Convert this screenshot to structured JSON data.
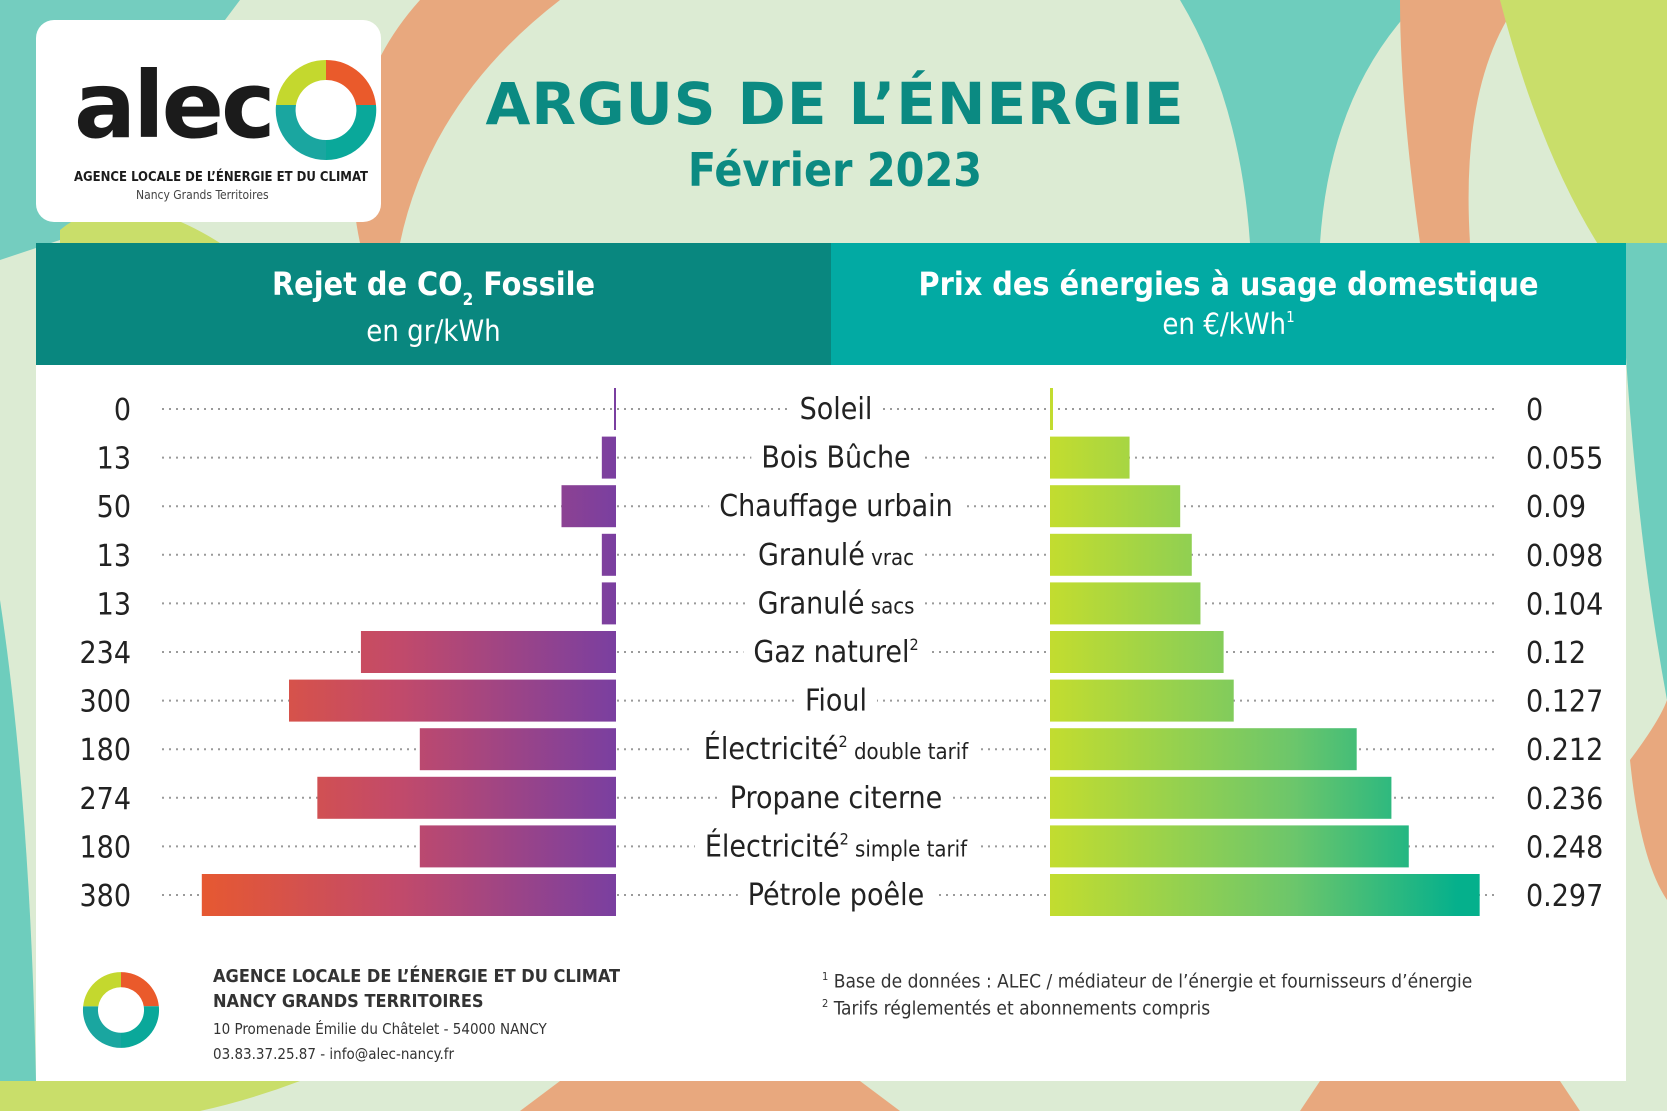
{
  "colors": {
    "title": "#0b8a82",
    "header_left": "#09877f",
    "header_right": "#02aaa3",
    "co2_bar_low": "#7a3fa0",
    "co2_bar_high": "#ea5a2b",
    "price_bar_low": "#c4dd2e",
    "price_bar_high": "#05b08c"
  },
  "logo": {
    "word": "alec",
    "line1": "AGENCE LOCALE DE L’ÉNERGIE ET DU CLIMAT",
    "line2": "Nancy Grands Territoires"
  },
  "header": {
    "title": "ARGUS DE L’ÉNERGIE",
    "subtitle": "Février 2023"
  },
  "left_panel": {
    "title_a": "Rejet de CO",
    "title_sub": "2",
    "title_b": " Fossile",
    "unit": "en gr/kWh"
  },
  "right_panel": {
    "title": "Prix des énergies à usage domestique",
    "unit": "en €/kWh",
    "unit_sup": "1"
  },
  "chart_data": {
    "type": "bar",
    "layout": "diverging-horizontal",
    "categories": [
      {
        "label": "Soleil",
        "small": "",
        "sup": ""
      },
      {
        "label": "Bois Bûche",
        "small": "",
        "sup": ""
      },
      {
        "label": "Chauffage urbain",
        "small": "",
        "sup": ""
      },
      {
        "label": "Granulé",
        "small": "vrac",
        "sup": ""
      },
      {
        "label": "Granulé",
        "small": "sacs",
        "sup": ""
      },
      {
        "label": "Gaz naturel",
        "small": "",
        "sup": "2"
      },
      {
        "label": "Fioul",
        "small": "",
        "sup": ""
      },
      {
        "label": "Électricité",
        "small": "double tarif",
        "sup": "2"
      },
      {
        "label": "Propane citerne",
        "small": "",
        "sup": ""
      },
      {
        "label": "Électricité",
        "small": "simple tarif",
        "sup": "2"
      },
      {
        "label": "Pétrole poêle",
        "small": "",
        "sup": ""
      }
    ],
    "series": [
      {
        "name": "Rejet de CO2 Fossile (gr/kWh)",
        "side": "left",
        "values": [
          0,
          13,
          50,
          13,
          13,
          234,
          300,
          180,
          274,
          180,
          380
        ],
        "labels": [
          "0",
          "13",
          "50",
          "13",
          "13",
          "234",
          "300",
          "180",
          "274",
          "180",
          "380"
        ],
        "xlim": [
          0,
          400
        ]
      },
      {
        "name": "Prix des énergies à usage domestique (€/kWh)",
        "side": "right",
        "values": [
          0,
          0.055,
          0.09,
          0.098,
          0.104,
          0.12,
          0.127,
          0.212,
          0.236,
          0.248,
          0.297
        ],
        "labels": [
          "0",
          "0.055",
          "0.09",
          "0.098",
          "0.104",
          "0.12",
          "0.127",
          "0.212",
          "0.236",
          "0.248",
          "0.297"
        ],
        "xlim": [
          0,
          0.3
        ]
      }
    ],
    "grid": "dotted leader lines"
  },
  "footer": {
    "org_line1": "AGENCE LOCALE DE L’ÉNERGIE ET DU CLIMAT",
    "org_line2": "NANCY GRANDS TERRITOIRES",
    "address": "10 Promenade Émilie du Châtelet - 54000 NANCY",
    "contact": "03.83.37.25.87 - info@alec-nancy.fr",
    "note1_mark": "1",
    "note1": "Base de données : ALEC / médiateur de l’énergie et fournisseurs d’énergie",
    "note2_mark": "2",
    "note2": "Tarifs réglementés et abonnements compris"
  }
}
